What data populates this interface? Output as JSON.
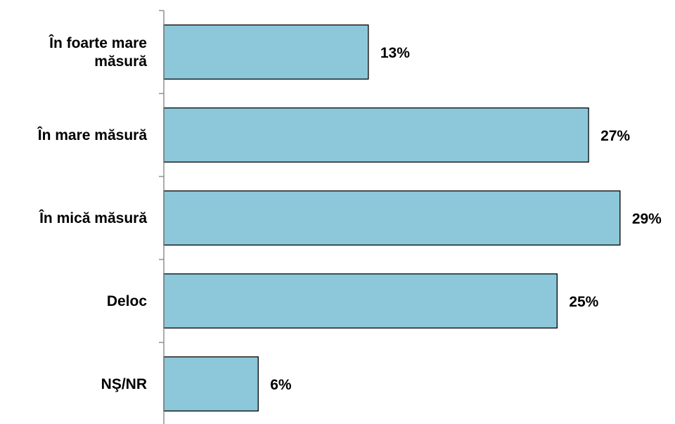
{
  "chart_data": {
    "type": "bar",
    "orientation": "horizontal",
    "categories": [
      [
        "În foarte mare",
        "măsură"
      ],
      [
        "În mare măsură"
      ],
      [
        "În mică măsură"
      ],
      [
        "Deloc"
      ],
      [
        "NŞ/NR"
      ]
    ],
    "values": [
      13,
      27,
      29,
      25,
      6
    ],
    "value_labels": [
      "13%",
      "27%",
      "29%",
      "25%",
      "6%"
    ],
    "unit": "%",
    "xlim": [
      0,
      29.5
    ],
    "grid": false,
    "legend": "none",
    "bar_color": "#8CC8DA",
    "bar_outline": "#000000",
    "axis_color": "#808080"
  }
}
